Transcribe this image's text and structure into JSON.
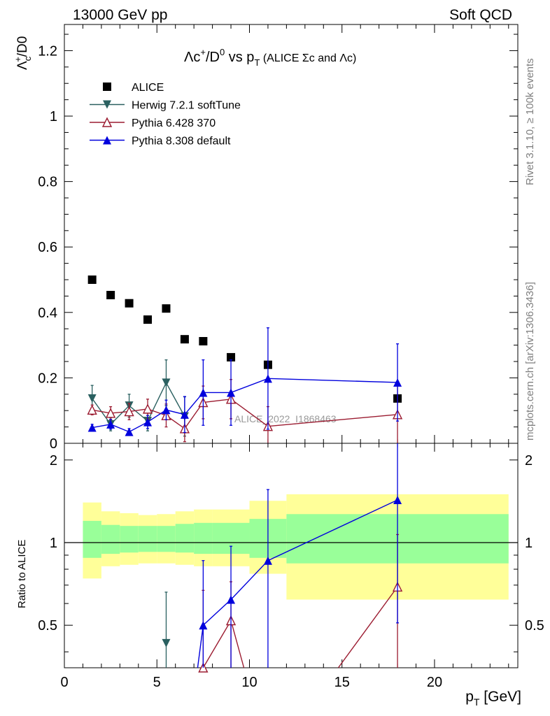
{
  "header": {
    "left": "13000 GeV pp",
    "right": "Soft QCD"
  },
  "side_labels": {
    "rivet": "Rivet 3.1.10, ≥ 100k events",
    "mcplots": "mcplots.cern.ch [arXiv:1306.3436]"
  },
  "chart_data": [
    {
      "type": "scatter",
      "title_parts": {
        "a": "Λc",
        "a_sup": "+",
        "b": "/D",
        "b_sup": "0",
        "c": " vs p",
        "c_sub": "T",
        "d": " (ALICE Σc and Λc)"
      },
      "ylabel_parts": {
        "a": "Λ",
        "a_sub": "c",
        "a_sup": "+",
        "b": "/D0"
      },
      "watermark": "ALICE_2022_I1868463",
      "xlim": [
        0,
        24.5
      ],
      "ylim": [
        0,
        1.28
      ],
      "xscale": "linear",
      "yscale": "linear",
      "yticks": [
        0,
        0.2,
        0.4,
        0.6,
        0.8,
        1,
        1.2
      ],
      "ytick_labels": [
        "0",
        "0.2",
        "0.4",
        "0.6",
        "0.8",
        "1",
        "1.2"
      ],
      "legend_position": "top-left",
      "series": [
        {
          "name": "ALICE",
          "color": "#000000",
          "marker": "square",
          "line": false,
          "x": [
            1.5,
            2.5,
            3.5,
            4.5,
            5.5,
            6.5,
            7.5,
            9,
            11,
            18
          ],
          "y": [
            0.5,
            0.453,
            0.428,
            0.378,
            0.412,
            0.318,
            0.312,
            0.263,
            0.24,
            0.137
          ]
        },
        {
          "name": "Herwig 7.2.1 softTune",
          "color": "#2a6060",
          "marker": "triangle-down",
          "line": true,
          "x": [
            1.5,
            2.5,
            3.5,
            4.5,
            5.5,
            6.5
          ],
          "y": [
            0.137,
            0.058,
            0.115,
            0.068,
            0.185,
            0.082
          ],
          "err": [
            0.04,
            0.02,
            0.035,
            0.03,
            0.07,
            0.06
          ]
        },
        {
          "name": "Pythia 6.428 370",
          "color": "#9b1b30",
          "marker": "triangle-open",
          "line": true,
          "x": [
            1.5,
            2.5,
            3.5,
            4.5,
            5.5,
            6.5,
            7.5,
            9,
            11,
            18
          ],
          "y": [
            0.102,
            0.092,
            0.097,
            0.105,
            0.085,
            0.045,
            0.125,
            0.135,
            0.052,
            0.088
          ],
          "err": [
            0.015,
            0.02,
            0.025,
            0.03,
            0.035,
            0.04,
            0.05,
            0.06,
            0.06,
            0.1
          ]
        },
        {
          "name": "Pythia 8.308 default",
          "color": "#0000dd",
          "marker": "triangle-up",
          "line": true,
          "x": [
            1.5,
            2.5,
            3.5,
            4.5,
            5.5,
            6.5,
            7.5,
            9,
            11,
            18
          ],
          "y": [
            0.048,
            0.058,
            0.035,
            0.065,
            0.102,
            0.088,
            0.155,
            0.155,
            0.198,
            0.186
          ],
          "err": [
            0.01,
            0.015,
            0.01,
            0.02,
            0.03,
            0.055,
            0.1,
            0.1,
            0.155,
            0.118
          ]
        }
      ]
    },
    {
      "type": "scatter",
      "ylabel": "Ratio to ALICE",
      "xlabel_parts": {
        "a": "p",
        "a_sub": "T",
        "b": " [GeV]"
      },
      "xlim": [
        0,
        24.5
      ],
      "ylim": [
        0.35,
        2.3
      ],
      "xticks": [
        0,
        5,
        10,
        15,
        20
      ],
      "xtick_labels": [
        "0",
        "5",
        "10",
        "15",
        "20"
      ],
      "yticks": [
        0.5,
        1,
        2
      ],
      "ytick_labels": [
        "0.5",
        "1",
        "2"
      ],
      "reference_line": 1,
      "bands": [
        {
          "x0": 1,
          "x1": 2,
          "inner": [
            0.88,
            1.2
          ],
          "outer": [
            0.74,
            1.4
          ]
        },
        {
          "x0": 2,
          "x1": 3,
          "inner": [
            0.91,
            1.16
          ],
          "outer": [
            0.82,
            1.3
          ]
        },
        {
          "x0": 3,
          "x1": 4,
          "inner": [
            0.92,
            1.15
          ],
          "outer": [
            0.83,
            1.28
          ]
        },
        {
          "x0": 4,
          "x1": 5,
          "inner": [
            0.925,
            1.15
          ],
          "outer": [
            0.84,
            1.26
          ]
        },
        {
          "x0": 5,
          "x1": 6,
          "inner": [
            0.925,
            1.15
          ],
          "outer": [
            0.84,
            1.27
          ]
        },
        {
          "x0": 6,
          "x1": 7,
          "inner": [
            0.92,
            1.17
          ],
          "outer": [
            0.83,
            1.3
          ]
        },
        {
          "x0": 7,
          "x1": 8,
          "inner": [
            0.91,
            1.18
          ],
          "outer": [
            0.82,
            1.32
          ]
        },
        {
          "x0": 8,
          "x1": 10,
          "inner": [
            0.91,
            1.18
          ],
          "outer": [
            0.82,
            1.32
          ]
        },
        {
          "x0": 10,
          "x1": 12,
          "inner": [
            0.88,
            1.22
          ],
          "outer": [
            0.77,
            1.42
          ]
        },
        {
          "x0": 12,
          "x1": 24,
          "inner": [
            0.84,
            1.27
          ],
          "outer": [
            0.62,
            1.5
          ]
        }
      ],
      "series": [
        {
          "name": "Herwig 7.2.1 softTune",
          "color": "#2a6060",
          "marker": "triangle-down",
          "x": [
            5.5
          ],
          "y": [
            0.43
          ],
          "err": [
            0.23
          ]
        },
        {
          "name": "Pythia 6.428 370",
          "color": "#9b1b30",
          "marker": "triangle-open",
          "x": [
            7.5,
            9,
            18
          ],
          "y": [
            0.35,
            0.52,
            0.69
          ],
          "err": [
            0.32,
            0.2,
            0.38
          ],
          "line_x": [
            7.5,
            9,
            9.7
          ],
          "line_y": [
            0.35,
            0.52,
            0.35
          ],
          "line2_x": [
            14.8,
            18
          ],
          "line2_y": [
            0.35,
            0.69
          ]
        },
        {
          "name": "Pythia 8.308 default",
          "color": "#0000dd",
          "marker": "triangle-up",
          "x": [
            7.5,
            9,
            11,
            18
          ],
          "y": [
            0.5,
            0.62,
            0.86,
            1.43
          ],
          "err": [
            0.36,
            0.35,
            0.7,
            0.92
          ],
          "line_x": [
            7.2,
            7.5,
            9,
            11,
            18
          ],
          "line_y": [
            0.35,
            0.5,
            0.62,
            0.86,
            1.43
          ]
        }
      ]
    }
  ]
}
